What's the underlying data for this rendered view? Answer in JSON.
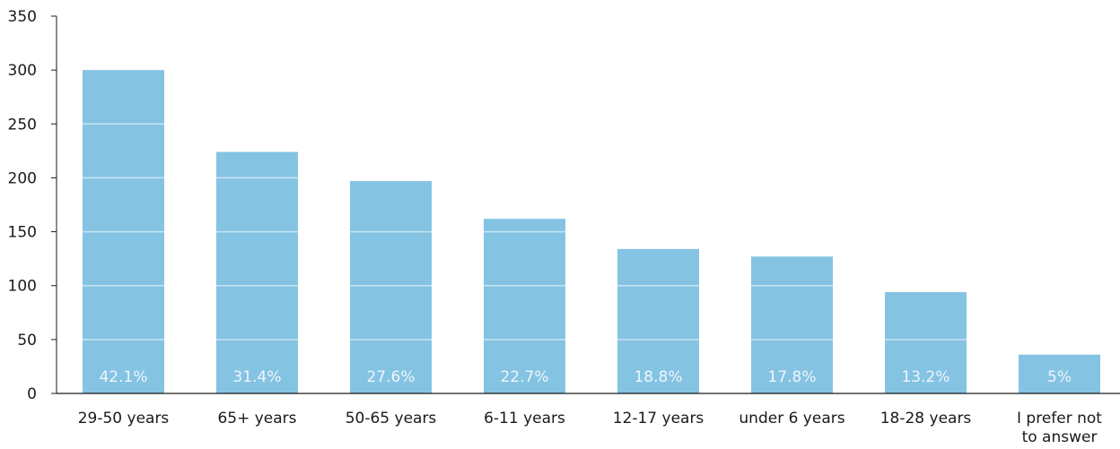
{
  "chart_data": {
    "type": "bar",
    "categories": [
      "29-50 years",
      "65+ years",
      "50-65 years",
      "6-11 years",
      "12-17 years",
      "under 6 years",
      "18-28 years",
      "I prefer not to answer"
    ],
    "category_lines": [
      [
        "29-50 years"
      ],
      [
        "65+ years"
      ],
      [
        "50-65 years"
      ],
      [
        "6-11 years"
      ],
      [
        "12-17 years"
      ],
      [
        "under 6 years"
      ],
      [
        "18-28 years"
      ],
      [
        "I prefer not",
        "to answer"
      ]
    ],
    "values": [
      300,
      224,
      197,
      162,
      134,
      127,
      94,
      36
    ],
    "data_labels": [
      "42.1%",
      "31.4%",
      "27.6%",
      "22.7%",
      "18.8%",
      "17.8%",
      "13.2%",
      "5%"
    ],
    "y_ticks": [
      0,
      50,
      100,
      150,
      200,
      250,
      300,
      350
    ],
    "ylim": [
      0,
      350
    ],
    "bar_color": "#85c3e3",
    "grid": "white lines across bars"
  }
}
